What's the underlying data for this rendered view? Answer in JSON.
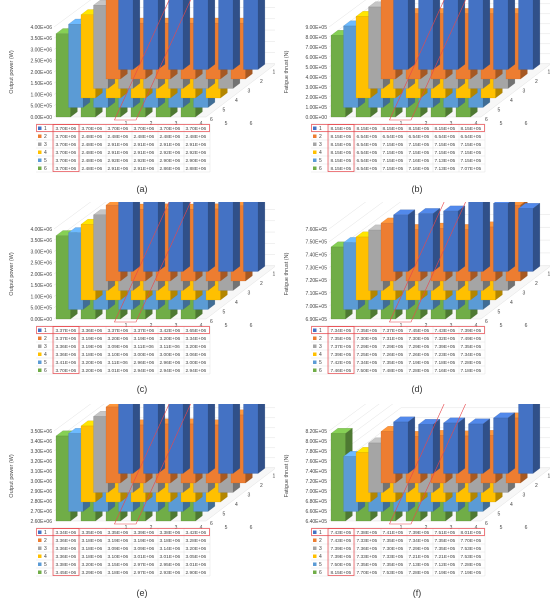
{
  "colors": {
    "s1": "#4472C4",
    "s2": "#ED7D31",
    "s3": "#A5A5A5",
    "s4": "#FFC000",
    "s5": "#5B9BD5",
    "s6": "#70AD47",
    "highlight": "#E8474C",
    "grid": "#D9D9D9"
  },
  "chart_data": [
    {
      "type": "bar",
      "caption": "(a)",
      "ylabel": "Output power (W)",
      "yticks": [
        "0.00E+00",
        "5.00E+05",
        "1.00E+06",
        "1.50E+06",
        "2.00E+06",
        "2.50E+06",
        "3.00E+06",
        "3.50E+06",
        "4.00E+06"
      ],
      "ylim": [
        0,
        4000000
      ],
      "categories": [
        "1",
        "2",
        "3",
        "4",
        "5",
        "6"
      ],
      "depth_labels": [
        "1",
        "2",
        "3",
        "4",
        "5",
        "6"
      ],
      "series": [
        {
          "name": "1",
          "values": [
            3700000,
            3700000,
            3700000,
            3700000,
            3700000,
            3700000
          ],
          "labels": [
            "3.70E+06",
            "3.70E+06",
            "3.70E+06",
            "3.70E+06",
            "3.70E+06",
            "3.70E+06"
          ]
        },
        {
          "name": "2",
          "values": [
            3700000,
            2480000,
            2480000,
            2480000,
            2480000,
            2480000
          ],
          "labels": [
            "3.70E+06",
            "2.48E+06",
            "2.48E+06",
            "2.48E+06",
            "2.48E+06",
            "2.48E+06"
          ]
        },
        {
          "name": "3",
          "values": [
            3700000,
            2480000,
            2910000,
            2910000,
            2910000,
            2910000
          ],
          "labels": [
            "3.70E+06",
            "2.48E+06",
            "2.91E+06",
            "2.91E+06",
            "2.91E+06",
            "2.91E+06"
          ]
        },
        {
          "name": "4",
          "values": [
            3700000,
            2480000,
            2910000,
            2910000,
            2920000,
            2920000
          ],
          "labels": [
            "3.70E+06",
            "2.48E+06",
            "2.91E+06",
            "2.91E+06",
            "2.92E+06",
            "2.92E+06"
          ]
        },
        {
          "name": "5",
          "values": [
            3700000,
            2480000,
            2920000,
            2920000,
            2900000,
            2900000
          ],
          "labels": [
            "3.70E+06",
            "2.48E+06",
            "2.92E+06",
            "2.92E+06",
            "2.90E+06",
            "2.90E+06"
          ]
        },
        {
          "name": "6",
          "values": [
            3700000,
            2480000,
            2910000,
            2910000,
            2860000,
            2880000
          ],
          "labels": [
            "3.70E+06",
            "2.48E+06",
            "2.91E+06",
            "2.91E+06",
            "2.86E+06",
            "2.88E+06"
          ]
        }
      ]
    },
    {
      "type": "bar",
      "caption": "(b)",
      "ylabel": "Fatigue thrust (N)",
      "yticks": [
        "0.00E+00",
        "1.00E+05",
        "2.00E+05",
        "3.00E+05",
        "4.00E+05",
        "5.00E+05",
        "6.00E+05",
        "7.00E+05",
        "8.00E+05",
        "9.00E+05"
      ],
      "ylim": [
        0,
        900000
      ],
      "categories": [
        "1",
        "2",
        "3",
        "4",
        "5",
        "6"
      ],
      "depth_labels": [
        "1",
        "2",
        "3",
        "4",
        "5",
        "6"
      ],
      "series": [
        {
          "name": "1",
          "values": [
            815000,
            815000,
            815000,
            815000,
            815000,
            815000
          ],
          "labels": [
            "8.15E+05",
            "8.15E+05",
            "8.15E+05",
            "8.15E+05",
            "8.15E+05",
            "8.15E+05"
          ]
        },
        {
          "name": "2",
          "values": [
            815000,
            654000,
            654000,
            654000,
            654000,
            654000
          ],
          "labels": [
            "8.15E+05",
            "6.54E+05",
            "6.54E+05",
            "6.54E+05",
            "6.54E+05",
            "6.54E+05"
          ]
        },
        {
          "name": "3",
          "values": [
            815000,
            654000,
            715000,
            715000,
            715000,
            715000
          ],
          "labels": [
            "8.15E+05",
            "6.54E+05",
            "7.15E+05",
            "7.15E+05",
            "7.15E+05",
            "7.15E+05"
          ]
        },
        {
          "name": "4",
          "values": [
            815000,
            654000,
            715000,
            715000,
            715000,
            715000
          ],
          "labels": [
            "8.15E+05",
            "6.54E+05",
            "7.15E+05",
            "7.15E+05",
            "7.15E+05",
            "7.15E+05"
          ]
        },
        {
          "name": "5",
          "values": [
            815000,
            654000,
            715000,
            716000,
            713000,
            715000
          ],
          "labels": [
            "8.15E+05",
            "6.54E+05",
            "7.15E+05",
            "7.16E+05",
            "7.13E+05",
            "7.15E+05"
          ]
        },
        {
          "name": "6",
          "values": [
            815000,
            654000,
            715000,
            716000,
            713000,
            707000
          ],
          "labels": [
            "8.15E+05",
            "6.54E+05",
            "7.15E+05",
            "7.16E+05",
            "7.13E+05",
            "7.07E+05"
          ]
        }
      ]
    },
    {
      "type": "bar",
      "caption": "(c)",
      "ylabel": "Output power (W)",
      "yticks": [
        "0.00E+00",
        "5.00E+05",
        "1.00E+06",
        "1.50E+06",
        "2.00E+06",
        "2.50E+06",
        "3.00E+06",
        "3.50E+06",
        "4.00E+06"
      ],
      "ylim": [
        0,
        4000000
      ],
      "categories": [
        "1",
        "2",
        "3",
        "4",
        "5",
        "6"
      ],
      "depth_labels": [
        "1",
        "2",
        "3",
        "4",
        "5",
        "6"
      ],
      "series": [
        {
          "name": "1",
          "values": [
            3370000,
            3360000,
            3370000,
            3370000,
            3420000,
            3650000
          ],
          "labels": [
            "3.37E+06",
            "3.36E+06",
            "3.37E+06",
            "3.37E+06",
            "3.42E+06",
            "3.65E+06"
          ]
        },
        {
          "name": "2",
          "values": [
            3370000,
            3190000,
            3200000,
            3190000,
            3200000,
            3340000
          ],
          "labels": [
            "3.37E+06",
            "3.19E+06",
            "3.20E+06",
            "3.19E+06",
            "3.20E+06",
            "3.34E+06"
          ]
        },
        {
          "name": "3",
          "values": [
            3360000,
            3190000,
            3090000,
            3110000,
            3110000,
            3200000
          ],
          "labels": [
            "3.36E+06",
            "3.19E+06",
            "3.09E+06",
            "3.11E+06",
            "3.11E+06",
            "3.20E+06"
          ]
        },
        {
          "name": "4",
          "values": [
            3360000,
            3180000,
            3100000,
            3000000,
            3000000,
            3060000
          ],
          "labels": [
            "3.36E+06",
            "3.18E+06",
            "3.10E+06",
            "3.00E+06",
            "3.00E+06",
            "3.06E+06"
          ]
        },
        {
          "name": "5",
          "values": [
            3410000,
            3200000,
            3110000,
            2960000,
            2960000,
            3000000
          ],
          "labels": [
            "3.41E+06",
            "3.20E+06",
            "3.11E+06",
            "2.96E+06",
            "2.96E+06",
            "3.00E+06"
          ]
        },
        {
          "name": "6",
          "values": [
            3700000,
            3200000,
            3010000,
            2940000,
            2940000,
            2940000
          ],
          "labels": [
            "3.70E+06",
            "3.20E+06",
            "3.01E+06",
            "2.94E+06",
            "2.94E+06",
            "2.94E+06"
          ]
        }
      ]
    },
    {
      "type": "bar",
      "caption": "(d)",
      "ylabel": "Fatigue thrust (N)",
      "yticks": [
        "6.90E+05",
        "7.00E+05",
        "7.10E+05",
        "7.20E+05",
        "7.30E+05",
        "7.40E+05",
        "7.50E+05",
        "7.60E+05"
      ],
      "ylim": [
        690000,
        760000
      ],
      "categories": [
        "1",
        "2",
        "3",
        "4",
        "5",
        "6"
      ],
      "depth_labels": [
        "1",
        "2",
        "3",
        "4",
        "5",
        "6"
      ],
      "series": [
        {
          "name": "1",
          "values": [
            734000,
            735000,
            737000,
            745000,
            743000,
            739000
          ],
          "labels": [
            "7.34E+05",
            "7.35E+05",
            "7.37E+05",
            "7.45E+05",
            "7.43E+05",
            "7.39E+05"
          ]
        },
        {
          "name": "2",
          "values": [
            735000,
            730000,
            731000,
            730000,
            732000,
            749000
          ],
          "labels": [
            "7.35E+05",
            "7.30E+05",
            "7.31E+05",
            "7.30E+05",
            "7.32E+05",
            "7.49E+05"
          ]
        },
        {
          "name": "3",
          "values": [
            737000,
            729000,
            729000,
            729000,
            739000,
            735000
          ],
          "labels": [
            "7.37E+05",
            "7.29E+05",
            "7.29E+05",
            "7.29E+05",
            "7.39E+05",
            "7.35E+05"
          ]
        },
        {
          "name": "4",
          "values": [
            739000,
            725000,
            726000,
            726000,
            723000,
            734000
          ],
          "labels": [
            "7.39E+05",
            "7.25E+05",
            "7.26E+05",
            "7.26E+05",
            "7.23E+05",
            "7.34E+05"
          ]
        },
        {
          "name": "5",
          "values": [
            742000,
            734000,
            735000,
            719000,
            718000,
            728000
          ],
          "labels": [
            "7.42E+05",
            "7.34E+05",
            "7.35E+05",
            "7.19E+05",
            "7.18E+05",
            "7.28E+05"
          ]
        },
        {
          "name": "6",
          "values": [
            746000,
            750000,
            748000,
            728000,
            716000,
            718000
          ],
          "labels": [
            "7.46E+05",
            "7.50E+05",
            "7.48E+05",
            "7.28E+05",
            "7.16E+05",
            "7.18E+05"
          ]
        }
      ]
    },
    {
      "type": "bar",
      "caption": "(e)",
      "ylabel": "Output power (W)",
      "yticks": [
        "2.60E+06",
        "2.70E+06",
        "2.80E+06",
        "2.90E+06",
        "3.00E+06",
        "3.10E+06",
        "3.20E+06",
        "3.30E+06",
        "3.40E+06",
        "3.50E+06"
      ],
      "ylim": [
        2600000,
        3500000
      ],
      "categories": [
        "1",
        "2",
        "3",
        "4",
        "5",
        "6"
      ],
      "depth_labels": [
        "1",
        "2",
        "3",
        "4",
        "5",
        "6"
      ],
      "series": [
        {
          "name": "1",
          "values": [
            3340000,
            3350000,
            3350000,
            3390000,
            3380000,
            3420000
          ],
          "labels": [
            "3.34E+06",
            "3.35E+06",
            "3.35E+06",
            "3.39E+06",
            "3.38E+06",
            "3.42E+06"
          ]
        },
        {
          "name": "2",
          "values": [
            3360000,
            3180000,
            3190000,
            3190000,
            3180000,
            3280000
          ],
          "labels": [
            "3.36E+06",
            "3.18E+06",
            "3.19E+06",
            "3.19E+06",
            "3.18E+06",
            "3.28E+06"
          ]
        },
        {
          "name": "3",
          "values": [
            3360000,
            3180000,
            3090000,
            3090000,
            3140000,
            3200000
          ],
          "labels": [
            "3.36E+06",
            "3.18E+06",
            "3.09E+06",
            "3.09E+06",
            "3.14E+06",
            "3.20E+06"
          ]
        },
        {
          "name": "4",
          "values": [
            3360000,
            3180000,
            3100000,
            3010000,
            3010000,
            3050000
          ],
          "labels": [
            "3.36E+06",
            "3.18E+06",
            "3.10E+06",
            "3.01E+06",
            "3.01E+06",
            "3.05E+06"
          ]
        },
        {
          "name": "5",
          "values": [
            3380000,
            3200000,
            3150000,
            2970000,
            2950000,
            3010000
          ],
          "labels": [
            "3.38E+06",
            "3.20E+06",
            "3.15E+06",
            "2.97E+06",
            "2.95E+06",
            "3.01E+06"
          ]
        },
        {
          "name": "6",
          "values": [
            3450000,
            3290000,
            3180000,
            2970000,
            2930000,
            2900000
          ],
          "labels": [
            "3.45E+06",
            "3.29E+06",
            "3.18E+06",
            "2.97E+06",
            "2.93E+06",
            "2.90E+06"
          ]
        }
      ]
    },
    {
      "type": "bar",
      "caption": "(f)",
      "ylabel": "Fatigue thrust (N)",
      "yticks": [
        "6.40E+05",
        "6.60E+05",
        "6.80E+05",
        "7.00E+05",
        "7.20E+05",
        "7.40E+05",
        "7.60E+05",
        "7.80E+05",
        "8.00E+05",
        "8.20E+05"
      ],
      "ylim": [
        640000,
        820000
      ],
      "categories": [
        "1",
        "2",
        "3",
        "4",
        "5",
        "6"
      ],
      "depth_labels": [
        "1",
        "2",
        "3",
        "4",
        "5",
        "6"
      ],
      "series": [
        {
          "name": "1",
          "values": [
            743000,
            738000,
            741000,
            739000,
            751000,
            801000
          ],
          "labels": [
            "7.43E+05",
            "7.38E+05",
            "7.41E+05",
            "7.39E+05",
            "7.51E+05",
            "8.01E+05"
          ]
        },
        {
          "name": "2",
          "values": [
            743000,
            733000,
            735000,
            734000,
            735000,
            770000
          ],
          "labels": [
            "7.43E+05",
            "7.33E+05",
            "7.35E+05",
            "7.34E+05",
            "7.35E+05",
            "7.70E+05"
          ]
        },
        {
          "name": "3",
          "values": [
            739000,
            736000,
            730000,
            729000,
            735000,
            753000
          ],
          "labels": [
            "7.39E+05",
            "7.36E+05",
            "7.30E+05",
            "7.29E+05",
            "7.35E+05",
            "7.53E+05"
          ]
        },
        {
          "name": "4",
          "values": [
            739000,
            733000,
            733000,
            721000,
            721000,
            753000
          ],
          "labels": [
            "7.39E+05",
            "7.33E+05",
            "7.33E+05",
            "7.21E+05",
            "7.21E+05",
            "7.53E+05"
          ]
        },
        {
          "name": "5",
          "values": [
            750000,
            735000,
            735000,
            713000,
            712000,
            728000
          ],
          "labels": [
            "7.50E+05",
            "7.35E+05",
            "7.35E+05",
            "7.13E+05",
            "7.12E+05",
            "7.28E+05"
          ]
        },
        {
          "name": "6",
          "values": [
            815000,
            770000,
            753000,
            728000,
            719000,
            719000
          ],
          "labels": [
            "8.15E+05",
            "7.70E+05",
            "7.53E+05",
            "7.28E+05",
            "7.19E+05",
            "7.19E+05"
          ]
        }
      ]
    }
  ]
}
